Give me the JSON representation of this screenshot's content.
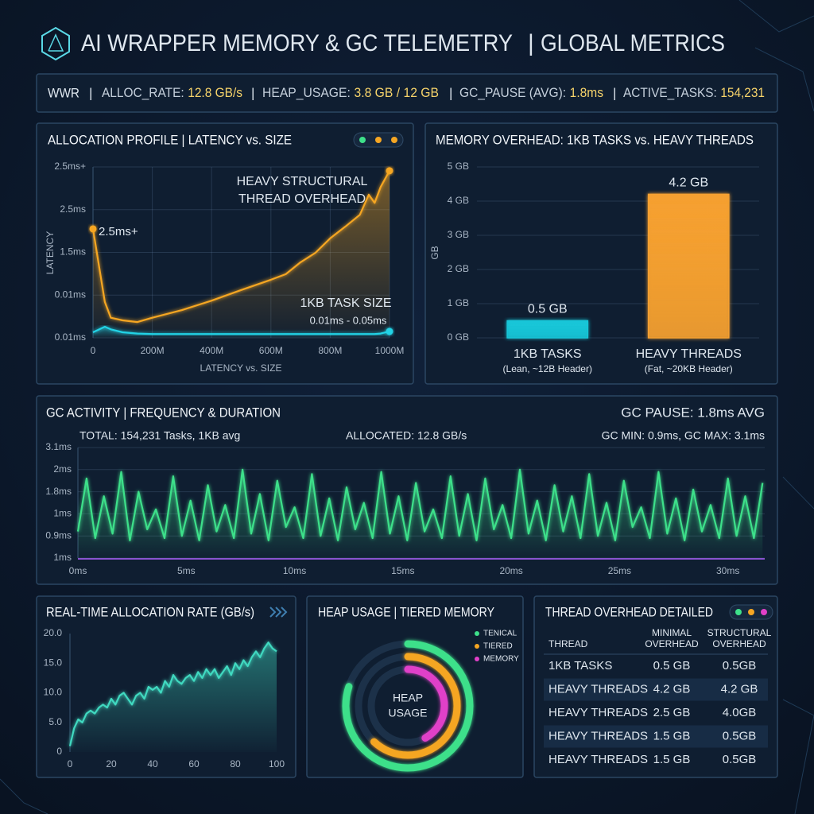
{
  "header": {
    "title": "AI WRAPPER MEMORY & GC TELEMETRY",
    "subtitle": "GLOBAL METRICS"
  },
  "stats": {
    "lead": "WWR",
    "items": [
      {
        "label": "ALLOC_RATE:",
        "value": "12.8 GB/s"
      },
      {
        "label": "HEAP_USAGE:",
        "value": "3.8 GB / 12 GB"
      },
      {
        "label": "GC_PAUSE (AVG):",
        "value": "1.8ms"
      },
      {
        "label": "ACTIVE_TASKS:",
        "value": "154,231"
      }
    ]
  },
  "chart_data": [
    {
      "type": "line",
      "title": "ALLOCATION PROFILE | LATENCY vs. SIZE",
      "x_label": "LATENCY vs. SIZE",
      "y_label": "LATENCY",
      "annotations": [
        "2.5ms+",
        "HEAVY STRUCTURAL",
        "THREAD OVERHEAD",
        "1KB TASK SIZE",
        "0.01ms - 0.05ms"
      ],
      "x": [
        0,
        40,
        60,
        100,
        150,
        200,
        300,
        400,
        500,
        600,
        650,
        700,
        750,
        800,
        850,
        900,
        930,
        950,
        970,
        1000
      ],
      "series": [
        {
          "color": "#f5a623",
          "values": [
            2.55,
            0.84,
            0.47,
            0.41,
            0.37,
            0.47,
            0.65,
            0.87,
            1.12,
            1.36,
            1.49,
            1.77,
            1.99,
            2.33,
            2.6,
            2.88,
            3.35,
            3.16,
            3.53,
            3.91
          ]
        },
        {
          "color": "#22d3e6",
          "values": [
            0.13,
            0.26,
            0.2,
            0.13,
            0.1,
            0.09,
            0.09,
            0.09,
            0.09,
            0.09,
            0.09,
            0.09,
            0.09,
            0.09,
            0.09,
            0.09,
            0.09,
            0.09,
            0.1,
            0.15
          ]
        }
      ],
      "xlim": [
        0,
        1000
      ],
      "xticks": [
        0,
        {
          "value": 200,
          "label": "200M"
        },
        {
          "value": 400,
          "label": "400M"
        },
        {
          "value": 600,
          "label": "600M"
        },
        {
          "value": 800,
          "label": "800M"
        },
        {
          "value": 1000,
          "label": "1000M"
        }
      ],
      "ylim": [
        0,
        4
      ],
      "yticks": [
        {
          "value": 0,
          "label": "0.01ms"
        },
        {
          "value": 1,
          "label": "0.01ms"
        },
        {
          "value": 2,
          "label": "1.5ms"
        },
        {
          "value": 3,
          "label": "2.5ms"
        },
        {
          "value": 4,
          "label": "2.5ms+"
        }
      ],
      "grid": true
    },
    {
      "type": "bar",
      "title": "MEMORY OVERHEAD: 1KB TASKS vs. HEAVY THREADS",
      "y_label": "GB",
      "categories": [
        "1KB TASKS",
        "HEAVY THREADS"
      ],
      "category_notes": [
        "(Lean, ~12B Header)",
        "(Fat, ~20KB Header)"
      ],
      "values": [
        0.5,
        4.2
      ],
      "value_labels": [
        "0.5 GB",
        "4.2 GB"
      ],
      "colors": [
        "#19c6d8",
        "#f5a030"
      ],
      "ylim": [
        0,
        5
      ],
      "yticks": [
        {
          "value": 0,
          "label": "0 GB"
        },
        {
          "value": 1,
          "label": "1 GB"
        },
        {
          "value": 2,
          "label": "2 GB"
        },
        {
          "value": 3,
          "label": "3 GB"
        },
        {
          "value": 4,
          "label": "4 GB"
        },
        {
          "value": 5,
          "label": "5 GB"
        }
      ],
      "grid": true
    },
    {
      "type": "line",
      "title": "GC ACTIVITY | FREQUENCY & DURATION",
      "annotations": [
        "GC PAUSE: 1.8ms AVG",
        "TOTAL: 154,231 Tasks, 1KB avg",
        "ALLOCATED: 12.8 GB/s",
        "GC MIN: 0.9ms, GC MAX: 3.1ms"
      ],
      "x": [
        0,
        0.4,
        0.8,
        1.2,
        1.6,
        2,
        2.4,
        2.8,
        3.2,
        3.6,
        4,
        4.4,
        4.8,
        5.2,
        5.6,
        6,
        6.4,
        6.8,
        7.2,
        7.6,
        8,
        8.4,
        8.8,
        9.2,
        9.6,
        10,
        10.4,
        10.8,
        11.2,
        11.6,
        12,
        12.4,
        12.8,
        13.2,
        13.6,
        14,
        14.4,
        14.8,
        15.2,
        15.6,
        16,
        16.4,
        16.8,
        17.2,
        17.6,
        18,
        18.4,
        18.8,
        19.2,
        19.6,
        20,
        20.4,
        20.8,
        21.2,
        21.6,
        22,
        22.4,
        22.8,
        23.2,
        23.6,
        24,
        24.4,
        24.8,
        25.2,
        25.6,
        26,
        26.4,
        26.8,
        27.2,
        27.6,
        28,
        28.4,
        28.8,
        29.2,
        29.6,
        30,
        30.4,
        30.8,
        31.2,
        31.6
      ],
      "series": [
        {
          "color": "#3ee08a",
          "values": [
            1.2,
            3.6,
            0.9,
            2.8,
            1.1,
            3.9,
            0.8,
            3.0,
            1.3,
            2.2,
            0.9,
            3.7,
            1.0,
            2.6,
            0.8,
            3.3,
            1.2,
            2.4,
            0.9,
            4.0,
            1.1,
            2.9,
            0.8,
            3.5,
            1.4,
            2.3,
            0.9,
            3.8,
            1.0,
            2.7,
            0.8,
            3.2,
            1.3,
            2.5,
            0.9,
            3.9,
            1.1,
            2.8,
            0.8,
            3.4,
            1.2,
            2.2,
            0.9,
            3.7,
            1.0,
            2.9,
            0.8,
            3.6,
            1.3,
            2.4,
            0.9,
            4.0,
            1.1,
            2.6,
            0.8,
            3.3,
            1.2,
            2.8,
            0.9,
            3.8,
            1.0,
            2.5,
            0.8,
            3.5,
            1.4,
            2.3,
            0.9,
            3.9,
            1.1,
            2.7,
            0.8,
            3.1,
            1.2,
            2.4,
            0.9,
            3.6,
            1.0,
            2.8,
            0.9,
            3.4
          ]
        }
      ],
      "xlim": [
        0,
        31.7
      ],
      "xticks": [
        {
          "value": 0,
          "label": "0ms"
        },
        {
          "value": 5,
          "label": "5ms"
        },
        {
          "value": 10,
          "label": "10ms"
        },
        {
          "value": 15,
          "label": "15ms"
        },
        {
          "value": 20,
          "label": "20ms"
        },
        {
          "value": 25,
          "label": "25ms"
        },
        {
          "value": 30,
          "label": "30ms"
        }
      ],
      "ylim": [
        0,
        5
      ],
      "yticks": [
        {
          "value": 0,
          "label": "1ms"
        },
        {
          "value": 1,
          "label": "0.9ms"
        },
        {
          "value": 2,
          "label": "1ms"
        },
        {
          "value": 3,
          "label": "1.8ms"
        },
        {
          "value": 4,
          "label": "2ms"
        },
        {
          "value": 5,
          "label": "3.1ms"
        }
      ],
      "grid": true
    },
    {
      "type": "line",
      "title": "REAL-TIME ALLOCATION RATE (GB/s)",
      "x": [
        0,
        2,
        4,
        6,
        8,
        10,
        12,
        14,
        16,
        18,
        20,
        22,
        24,
        26,
        28,
        30,
        32,
        34,
        36,
        38,
        40,
        42,
        44,
        46,
        48,
        50,
        52,
        54,
        56,
        58,
        60,
        62,
        64,
        66,
        68,
        70,
        72,
        74,
        76,
        78,
        80,
        82,
        84,
        86,
        88,
        90,
        92,
        94,
        96,
        98,
        100
      ],
      "series": [
        {
          "color": "#3fd9c0",
          "values": [
            1,
            4,
            5.5,
            5,
            6.5,
            7,
            6.5,
            7.5,
            8,
            7.5,
            9,
            8,
            9.5,
            10,
            9,
            8,
            9.5,
            10,
            9,
            11,
            10.5,
            11,
            10,
            12,
            11,
            13,
            12,
            11.5,
            12.5,
            13,
            12,
            13.5,
            12.5,
            14,
            13,
            14,
            12.5,
            13.5,
            14.5,
            13,
            15,
            14,
            15.5,
            14.5,
            16,
            17,
            16,
            17.5,
            18.5,
            17.5,
            17
          ]
        }
      ],
      "xlim": [
        0,
        100
      ],
      "xticks": [
        0,
        20,
        40,
        60,
        80,
        100
      ],
      "ylim": [
        0,
        20
      ],
      "yticks": [
        0,
        {
          "value": 5,
          "label": "5.0"
        },
        {
          "value": 10,
          "label": "10.0"
        },
        {
          "value": 15,
          "label": "15.0"
        },
        {
          "value": 20,
          "label": "20.0"
        }
      ],
      "grid": false
    },
    {
      "type": "donut",
      "title": "HEAP USAGE | TIERED MEMORY",
      "center_label": [
        "HEAP",
        "USAGE"
      ],
      "categories": [
        "TENICAL",
        "TIERED",
        "MEMORY"
      ],
      "values": [
        80,
        62,
        42
      ],
      "colors": [
        "#3ee08a",
        "#f5a623",
        "#e040c8"
      ]
    }
  ],
  "table": {
    "title": "THREAD OVERHEAD DETAILED",
    "columns": [
      "THREAD",
      [
        "MINIMAL",
        "OVERHEAD"
      ],
      [
        "STRUCTURAL",
        "OVERHEAD"
      ]
    ],
    "rows": [
      [
        "1KB TASKS",
        "0.5 GB",
        "0.5GB"
      ],
      [
        "HEAVY THREADS",
        "4.2 GB",
        "4.2 GB"
      ],
      [
        "HEAVY THREADS",
        "2.5 GB",
        "4.0GB"
      ],
      [
        "HEAVY THREADS",
        "1.5 GB",
        "0.5GB"
      ],
      [
        "HEAVY THREADS",
        "1.5 GB",
        "0.5GB"
      ]
    ]
  }
}
